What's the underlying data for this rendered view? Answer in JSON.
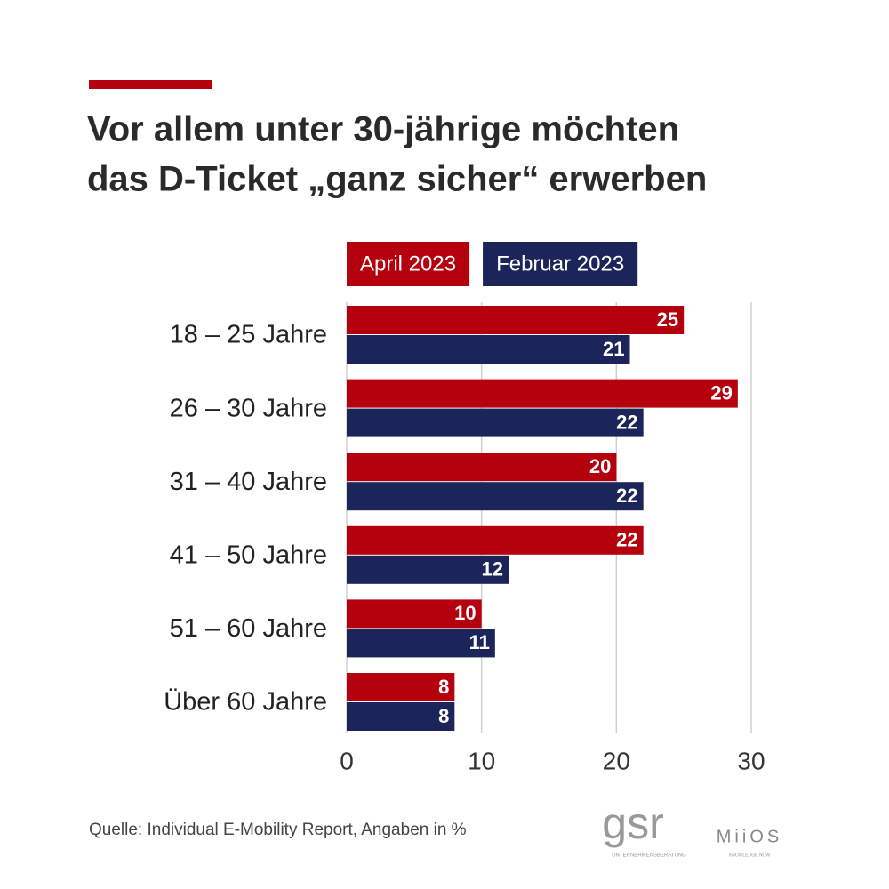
{
  "chart_data": {
    "type": "hbar",
    "title": [
      "Vor allem unter 30-jährige möchten",
      "das D-Ticket „ganz sicher“ erwerben"
    ],
    "categories": [
      "18 – 25 Jahre",
      "26 – 30 Jahre",
      "31 – 40 Jahre",
      "41 – 50 Jahre",
      "51 – 60 Jahre",
      "Über 60 Jahre"
    ],
    "series": [
      {
        "name": "April 2023",
        "color": "#b5000e",
        "values": [
          25,
          29,
          20,
          22,
          10,
          8
        ]
      },
      {
        "name": "Februar 2023",
        "color": "#1c2559",
        "values": [
          21,
          22,
          22,
          12,
          11,
          8
        ]
      }
    ],
    "xlim": [
      0,
      30
    ],
    "xticks": [
      0,
      10,
      20,
      30
    ],
    "grid": true,
    "legend": "top",
    "source": "Quelle: Individual E-Mobility Report, Angaben in %",
    "logos": [
      {
        "name": "gsr",
        "subtitle": "UNTERNEHMENSBERATUNG"
      },
      {
        "name": "MiiOS",
        "subtitle": "KNOWLEDGE NOW"
      }
    ]
  }
}
